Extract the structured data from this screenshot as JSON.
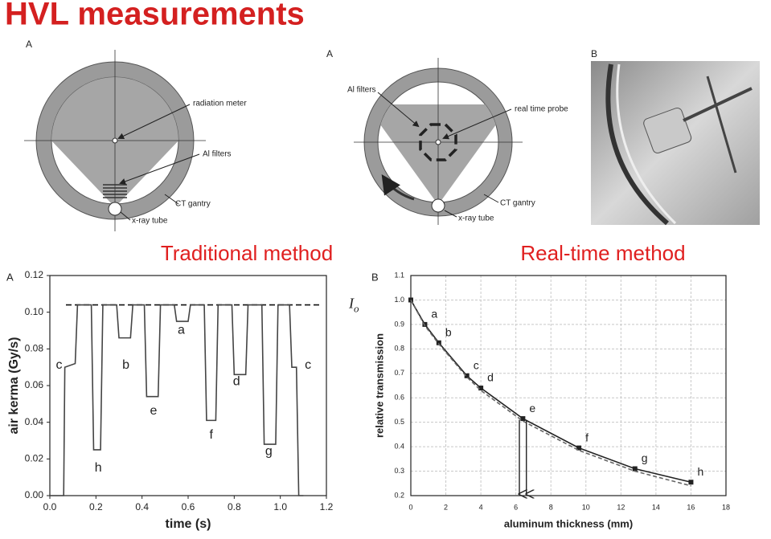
{
  "header": {
    "title": "HVL measurements"
  },
  "diagrams": [
    {
      "panel": "A",
      "labels": [
        "radiation meter",
        "Al filters",
        "CT gantry",
        "x-ray tube"
      ]
    },
    {
      "panel": "A",
      "labels": [
        "Al filters",
        "real time probe",
        "CT gantry",
        "x-ray tube"
      ]
    },
    {
      "panel": "B"
    }
  ],
  "chart_data": [
    {
      "type": "line",
      "title": "Traditional method",
      "panel": "A",
      "xlabel": "time (s)",
      "ylabel": "air kerma (Gy/s)",
      "xlim": [
        0,
        1.2
      ],
      "ylim": [
        0,
        0.12
      ],
      "xticks": [
        {
          "value": 0,
          "label": "0.0"
        },
        {
          "value": 0.2,
          "label": "0.2"
        },
        {
          "value": 0.4,
          "label": "0.4"
        },
        {
          "value": 0.6,
          "label": "0.6"
        },
        {
          "value": 0.8,
          "label": "0.8"
        },
        {
          "value": 1,
          "label": "1.0"
        },
        {
          "value": 1.2,
          "label": "1.2"
        }
      ],
      "yticks": [
        {
          "value": 0,
          "label": "0.00"
        },
        {
          "value": 0.02,
          "label": "0.02"
        },
        {
          "value": 0.04,
          "label": "0.04"
        },
        {
          "value": 0.06,
          "label": "0.06"
        },
        {
          "value": 0.08,
          "label": "0.08"
        },
        {
          "value": 0.1,
          "label": "0.10"
        },
        {
          "value": 0.12,
          "label": "0.12"
        }
      ],
      "grid": false,
      "x": [
        0,
        0.06,
        0.065,
        0.11,
        0.12,
        0.18,
        0.19,
        0.22,
        0.23,
        0.29,
        0.3,
        0.35,
        0.36,
        0.41,
        0.42,
        0.47,
        0.48,
        0.54,
        0.55,
        0.6,
        0.61,
        0.67,
        0.68,
        0.72,
        0.73,
        0.79,
        0.8,
        0.85,
        0.86,
        0.92,
        0.93,
        0.98,
        0.99,
        1.04,
        1.05,
        1.07,
        1.08,
        1.1
      ],
      "series": [
        {
          "color": "#444444",
          "values": [
            0,
            0,
            0.07,
            0.072,
            0.104,
            0.104,
            0.025,
            0.025,
            0.104,
            0.104,
            0.086,
            0.086,
            0.104,
            0.104,
            0.054,
            0.054,
            0.104,
            0.104,
            0.095,
            0.095,
            0.104,
            0.104,
            0.041,
            0.041,
            0.104,
            0.104,
            0.066,
            0.066,
            0.104,
            0.104,
            0.028,
            0.028,
            0.104,
            0.104,
            0.07,
            0.07,
            0,
            0
          ]
        }
      ],
      "reference_line": {
        "value": 0.104,
        "label": "I",
        "subscript": "o"
      },
      "annotations": [
        {
          "text": "c",
          "x": 0.04,
          "y": 0.071
        },
        {
          "text": "h",
          "x": 0.21,
          "y": 0.015
        },
        {
          "text": "b",
          "x": 0.33,
          "y": 0.071
        },
        {
          "text": "e",
          "x": 0.45,
          "y": 0.046
        },
        {
          "text": "a",
          "x": 0.57,
          "y": 0.09
        },
        {
          "text": "f",
          "x": 0.7,
          "y": 0.033
        },
        {
          "text": "d",
          "x": 0.81,
          "y": 0.062
        },
        {
          "text": "g",
          "x": 0.95,
          "y": 0.024
        },
        {
          "text": "c",
          "x": 1.12,
          "y": 0.071
        }
      ]
    },
    {
      "type": "line",
      "title": "Real-time method",
      "panel": "B",
      "xlabel": "aluminum thickness (mm)",
      "ylabel": "relative transmission",
      "xlim": [
        0,
        18
      ],
      "ylim": [
        0.2,
        1.1
      ],
      "xticks": [
        0,
        2,
        4,
        6,
        8,
        10,
        12,
        14,
        16,
        18
      ],
      "yticks": [
        0.2,
        0.3,
        0.4,
        0.5,
        0.6,
        0.7,
        0.8,
        0.9,
        {
          "value": 1,
          "label": "1.0"
        },
        1.1
      ],
      "grid": true,
      "x": [
        0,
        0.8,
        1.6,
        3.2,
        4,
        6.4,
        9.6,
        12.8,
        16
      ],
      "series": [
        {
          "color": "#222222",
          "values": [
            1,
            0.9,
            0.825,
            0.69,
            0.64,
            0.515,
            0.395,
            0.31,
            0.255
          ],
          "markers": true
        },
        {
          "color": "#666666",
          "dash": true,
          "values": [
            1,
            0.895,
            0.82,
            0.685,
            0.63,
            0.505,
            0.385,
            0.3,
            0.24
          ]
        }
      ],
      "point_labels": [
        null,
        "a",
        "b",
        "c",
        "d",
        "e",
        "f",
        "g",
        "h"
      ],
      "arrows": [
        {
          "x": 6.2,
          "y": 0.51
        },
        {
          "x": 6.6,
          "y": 0.51
        }
      ]
    }
  ]
}
